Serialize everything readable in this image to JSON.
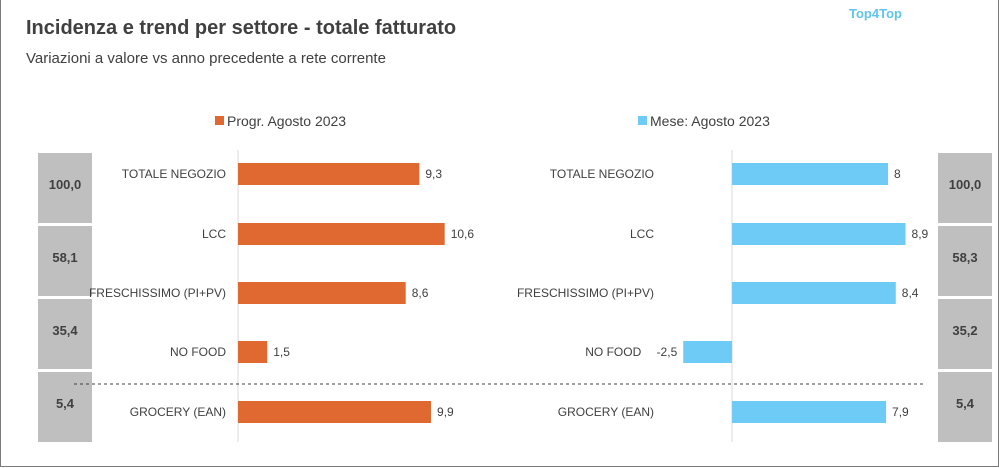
{
  "header": {
    "title": "Incidenza e trend per settore - totale fatturato",
    "subtitle": "Variazioni a valore vs anno precedente a rete corrente",
    "brand": "Top4Top"
  },
  "chart_data": [
    {
      "type": "bar",
      "orientation": "horizontal",
      "legend_label": "Progr. Agosto 2023",
      "color": "#e06932",
      "categories": [
        "TOTALE NEGOZIO",
        "LCC",
        "FRESCHISSIMO (PI+PV)",
        "NO FOOD",
        "GROCERY (EAN)"
      ],
      "values": [
        9.3,
        10.6,
        8.6,
        1.5,
        9.9
      ],
      "value_labels": [
        "9,3",
        "10,6",
        "8,6",
        "1,5",
        "9,9"
      ],
      "share_labels": [
        "100,0",
        "58,1",
        "35,4",
        "5,4"
      ],
      "grid": false,
      "legend_position": "top"
    },
    {
      "type": "bar",
      "orientation": "horizontal",
      "legend_label": "Mese: Agosto 2023",
      "color": "#6dcbf6",
      "categories": [
        "TOTALE NEGOZIO",
        "LCC",
        "FRESCHISSIMO (PI+PV)",
        "NO FOOD",
        "GROCERY (EAN)"
      ],
      "values": [
        8,
        8.9,
        8.4,
        -2.5,
        7.9
      ],
      "value_labels": [
        "8",
        "8,9",
        "8,4",
        "-2,5",
        "7,9"
      ],
      "share_labels": [
        "100,0",
        "58,3",
        "35,2",
        "5,4"
      ],
      "grid": false,
      "legend_position": "top"
    }
  ]
}
